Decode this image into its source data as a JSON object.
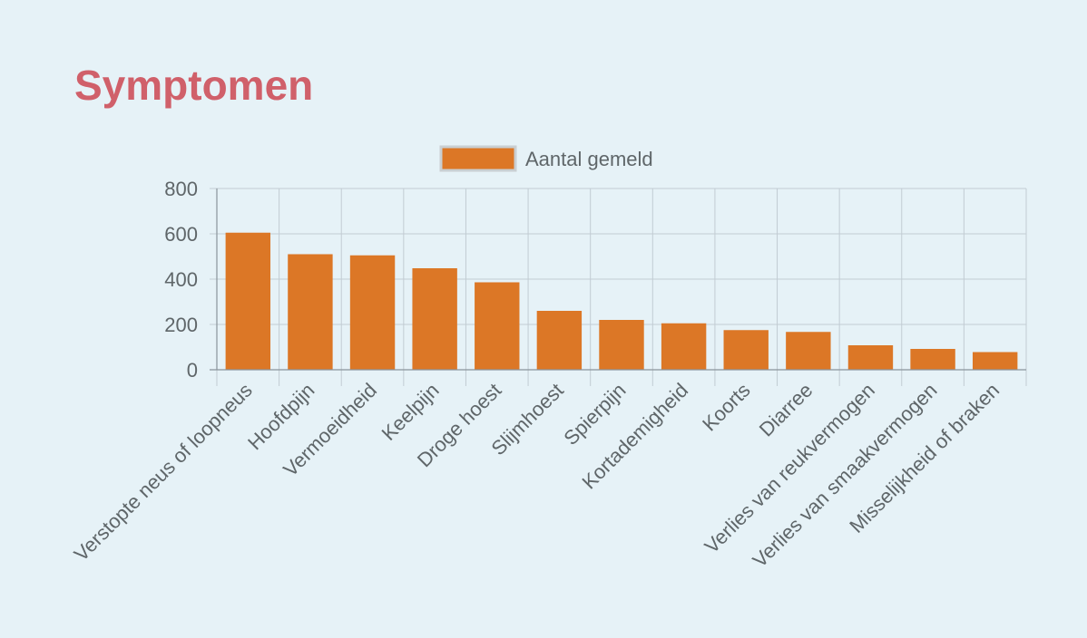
{
  "page": {
    "title": "Symptomen"
  },
  "colors": {
    "background": "#e6f2f7",
    "title": "#d0606a",
    "bar": "#dc7726",
    "grid": "#c2ccd3",
    "axis": "#8a949b",
    "text": "#5f6669"
  },
  "chart_data": {
    "type": "bar",
    "title": "",
    "xlabel": "",
    "ylabel": "",
    "ylim": [
      0,
      800
    ],
    "yticks": [
      0,
      200,
      400,
      600,
      800
    ],
    "grid": true,
    "legend_position": "top-center",
    "categories": [
      "Verstopte neus of loopneus",
      "Hoofdpijn",
      "Vermoeidheid",
      "Keelpijn",
      "Droge hoest",
      "Slijmhoest",
      "Spierpijn",
      "Kortademigheid",
      "Koorts",
      "Diarree",
      "Verlies van reukvermogen",
      "Verlies van smaakvermogen",
      "Misselijkheid of braken"
    ],
    "series": [
      {
        "name": "Aantal gemeld",
        "color": "#dc7726",
        "values": [
          605,
          510,
          505,
          448,
          386,
          260,
          220,
          205,
          175,
          167,
          108,
          92,
          78
        ]
      }
    ]
  }
}
